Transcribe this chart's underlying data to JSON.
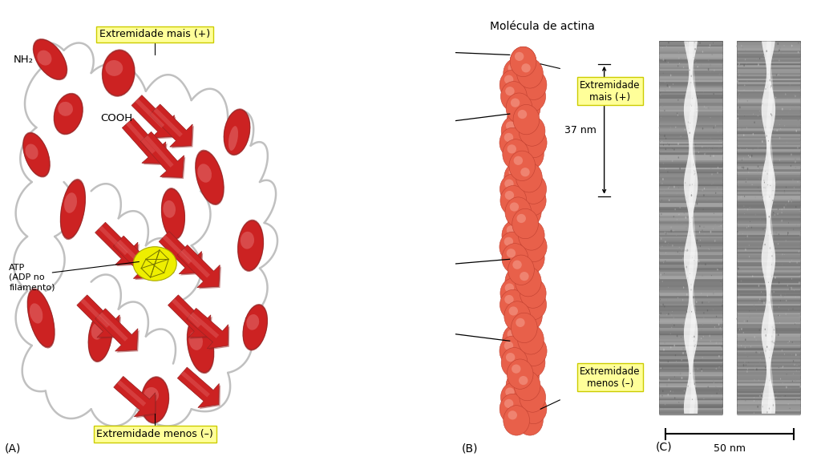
{
  "bg_color": "#ffffff",
  "panel_A_label": "(A)",
  "panel_B_label": "(B)",
  "panel_C_label": "(C)",
  "title_B": "Molécula de actina",
  "label_plus_top": "Extremidade\nmais (+)",
  "label_minus_bottom": "Extremidade\nmenos (–)",
  "label_37nm": "37 nm",
  "label_50nm": "50 nm",
  "label_nh2": "NH₂",
  "label_cooh": "COOH",
  "label_atp": "ATP\n(ADP no\nfilamento)",
  "label_plus_A": "Extremidade mais (+)",
  "label_minus_A": "Extremidade menos (–)",
  "yellow_box_color": "#FFFF99",
  "yellow_box_edge": "#CCCC00",
  "actin_color": "#E8604A",
  "actin_edge": "#C04030",
  "actin_highlight": "#F5A090",
  "ribbon_red": "#CC2222",
  "ribbon_dark": "#992222",
  "ribbon_light": "#E06060",
  "loop_color": "#C0C0C0",
  "loop_lw": 1.8,
  "atp_color": "#EEEE00",
  "atp_edge": "#AAAA00",
  "em_bg": "#909090",
  "em_dark": "#606060",
  "em_light": "#BBBBBB",
  "em_stripe": "#FFFFFF",
  "fig_width": 10.24,
  "fig_height": 5.9
}
